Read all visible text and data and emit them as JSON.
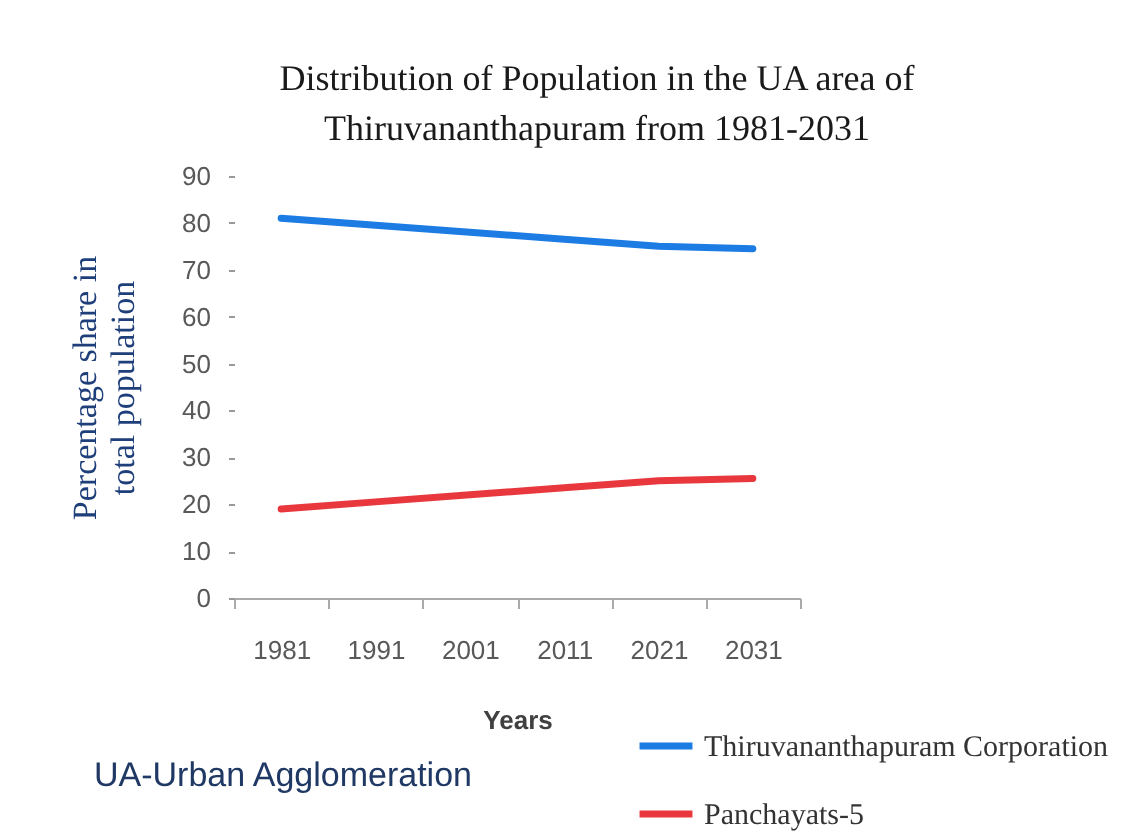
{
  "chart_data": {
    "type": "line",
    "title": "Distribution of Population in the UA area of Thiruvananthapuram from 1981-2031",
    "xlabel": "Years",
    "ylabel": "Percentage share in total population",
    "categories": [
      "1981",
      "1991",
      "2001",
      "2011",
      "2021",
      "2031"
    ],
    "series": [
      {
        "name": "Thiruvananthapuram Corporation",
        "color": "#1c7ce4",
        "values": [
          81,
          79.5,
          78,
          76.5,
          75,
          74.5
        ]
      },
      {
        "name": "Panchayats-5",
        "color": "#e8383d",
        "values": [
          19,
          20.5,
          22,
          23.5,
          25,
          25.5
        ]
      }
    ],
    "ylim": [
      0,
      90
    ],
    "yticks": [
      0,
      10,
      20,
      30,
      40,
      50,
      60,
      70,
      80,
      90
    ],
    "grid": false,
    "legend": "bottom right",
    "marker": "none",
    "line_style": "solid",
    "annotations": [
      "UA-Urban Agglomeration"
    ]
  }
}
